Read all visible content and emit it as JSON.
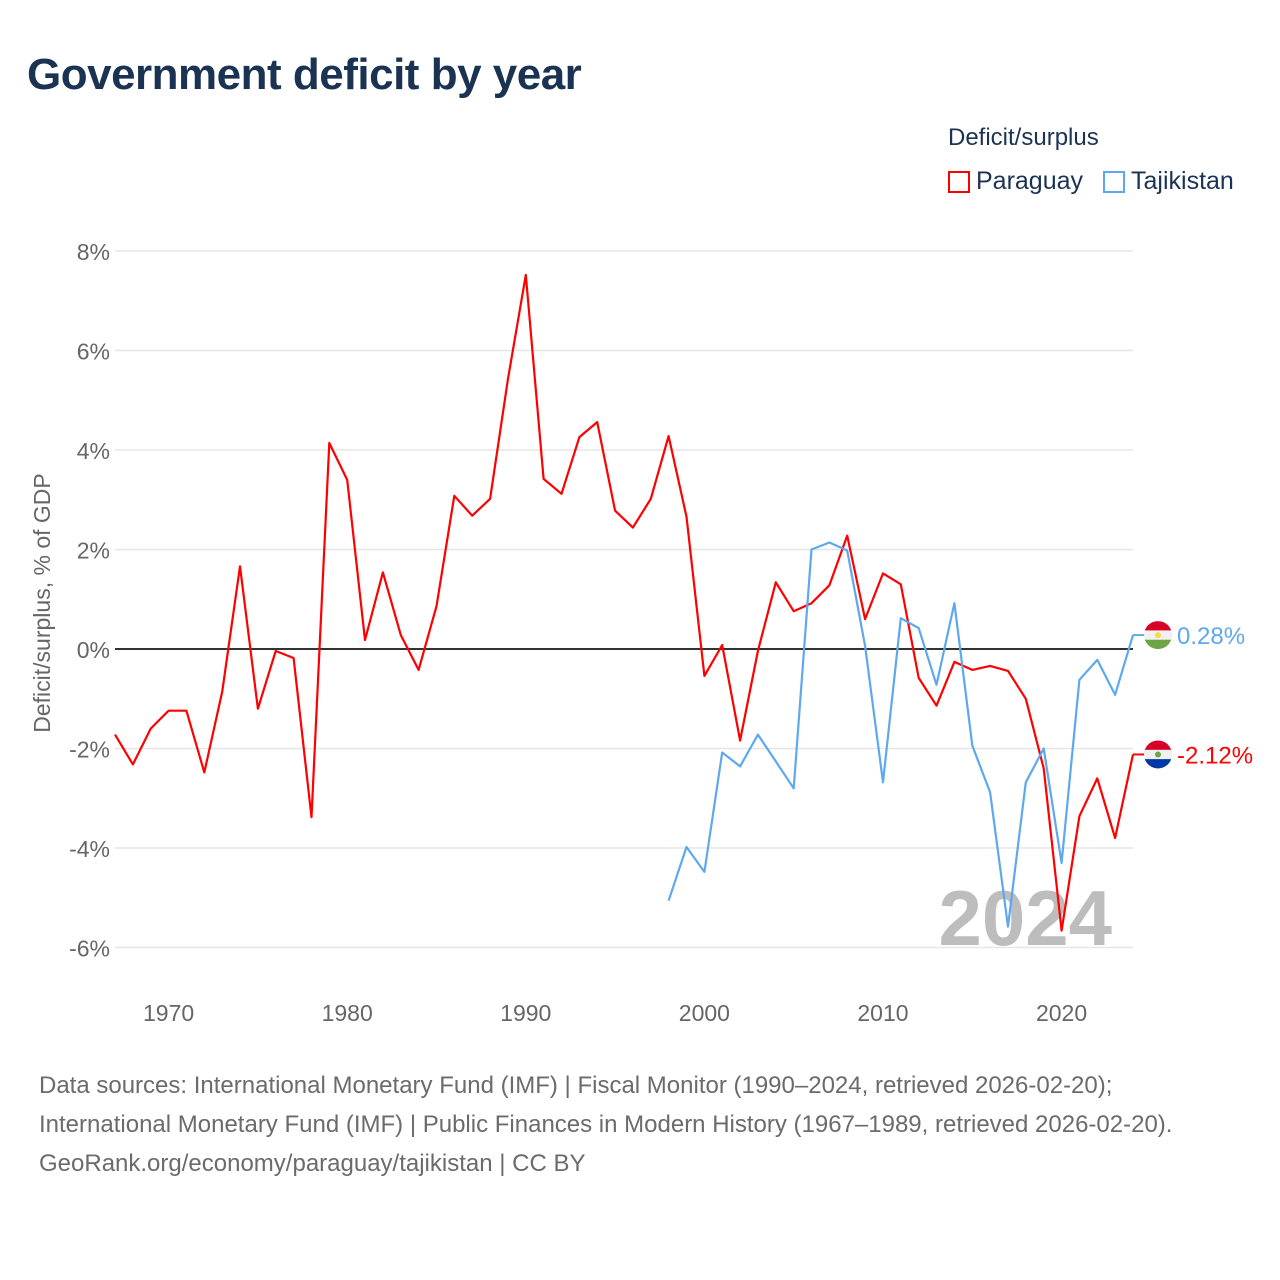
{
  "title": "Government deficit by year",
  "legend": {
    "title": "Deficit/surplus",
    "items": [
      {
        "label": "Paraguay",
        "color": "#ff0000"
      },
      {
        "label": "Tajikistan",
        "color": "#5ea8ee"
      }
    ]
  },
  "footer": {
    "sources": "Data sources: International Monetary Fund (IMF) | Fiscal Monitor (1990–2024, retrieved 2026-02-20); International Monetary Fund (IMF) | Public Finances in Modern History (1967–1989, retrieved 2026-02-20).",
    "credit": "GeoRank.org/economy/paraguay/tajikistan | CC BY"
  },
  "chart_data": {
    "type": "line",
    "title": "Government deficit by year",
    "xlabel": "",
    "ylabel": "Deficit/surplus, % of GDP",
    "xlim": [
      1967,
      2024
    ],
    "ylim": [
      -6.9,
      8
    ],
    "yticks": [
      8,
      6,
      4,
      2,
      0,
      -2,
      -4,
      -6
    ],
    "ytick_labels": [
      "8%",
      "6%",
      "4%",
      "2%",
      "0%",
      "-2%",
      "-4%",
      "-6%"
    ],
    "xticks": [
      1970,
      1980,
      1990,
      2000,
      2010,
      2020
    ],
    "xtick_labels": [
      "1970",
      "1980",
      "1990",
      "2000",
      "2010",
      "2020"
    ],
    "year_watermark": "2024",
    "grid": true,
    "legend_position": "top-right",
    "series": [
      {
        "name": "Paraguay",
        "color": "#ff0000",
        "start_year": 1967,
        "end_label": "-2.12%",
        "values": [
          -1.72,
          -2.32,
          -1.6,
          -1.24,
          -1.24,
          -2.48,
          -0.86,
          1.66,
          -1.2,
          -0.04,
          -0.18,
          -3.38,
          4.14,
          3.4,
          0.18,
          1.54,
          0.28,
          -0.42,
          0.86,
          3.08,
          2.68,
          3.02,
          5.42,
          7.52,
          3.42,
          3.12,
          4.26,
          4.56,
          2.78,
          2.44,
          3.02,
          4.28,
          2.66,
          -0.54,
          0.08,
          -1.84,
          -0.04,
          1.34,
          0.76,
          0.92,
          1.28,
          2.28,
          0.6,
          1.52,
          1.3,
          -0.58,
          -1.14,
          -0.26,
          -0.42,
          -0.34,
          -0.44,
          -1.0,
          -2.4,
          -5.66,
          -3.36,
          -2.6,
          -3.8,
          -2.12
        ]
      },
      {
        "name": "Tajikistan",
        "color": "#5ea8ee",
        "start_year": 1998,
        "end_label": "0.28%",
        "values": [
          -5.06,
          -3.98,
          -4.48,
          -2.08,
          -2.36,
          -1.72,
          -2.26,
          -2.8,
          2.0,
          2.14,
          1.98,
          0.06,
          -2.68,
          0.62,
          0.42,
          -0.72,
          0.92,
          -1.94,
          -2.88,
          -5.58,
          -2.68,
          -2.0,
          -4.3,
          -0.62,
          -0.22,
          -0.92,
          0.28
        ]
      }
    ]
  }
}
